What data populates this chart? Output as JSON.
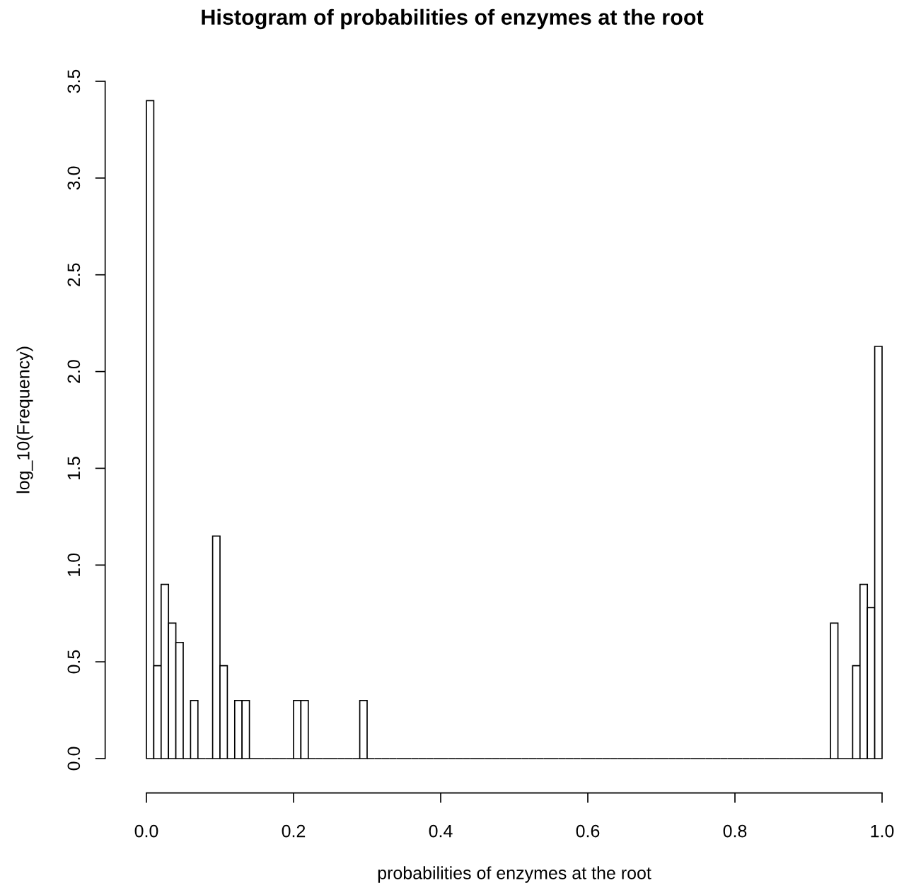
{
  "chart_data": {
    "type": "histogram",
    "title": "Histogram of probabilities of enzymes at the root",
    "xlabel": "probabilities of enzymes at the root",
    "ylabel": "log_10(Frequency)",
    "bins": [
      0,
      0.01,
      0.02,
      0.03,
      0.04,
      0.05,
      0.06,
      0.07,
      0.08,
      0.09,
      0.1,
      0.11,
      0.12,
      0.13,
      0.14,
      0.15,
      0.16,
      0.17,
      0.18,
      0.19,
      0.2,
      0.21,
      0.22,
      0.23,
      0.24,
      0.25,
      0.26,
      0.27,
      0.28,
      0.29,
      0.3,
      0.31,
      0.32,
      0.33,
      0.34,
      0.35,
      0.36,
      0.37,
      0.38,
      0.39,
      0.4,
      0.41,
      0.42,
      0.43,
      0.44,
      0.45,
      0.46,
      0.47,
      0.48,
      0.49,
      0.5,
      0.51,
      0.52,
      0.53,
      0.54,
      0.55,
      0.56,
      0.57,
      0.58,
      0.59,
      0.6,
      0.61,
      0.62,
      0.63,
      0.64,
      0.65,
      0.66,
      0.67,
      0.68,
      0.69,
      0.7,
      0.71,
      0.72,
      0.73,
      0.74,
      0.75,
      0.76,
      0.77,
      0.78,
      0.79,
      0.8,
      0.81,
      0.82,
      0.83,
      0.84,
      0.85,
      0.86,
      0.87,
      0.88,
      0.89,
      0.9,
      0.91,
      0.92,
      0.93,
      0.94,
      0.95,
      0.96,
      0.97,
      0.98,
      0.99,
      1
    ],
    "values": [
      3.4,
      0.48,
      0.9,
      0.7,
      0.6,
      0,
      0.3,
      0,
      0,
      1.15,
      0.48,
      0,
      0.3,
      0.3,
      0,
      0,
      0,
      0,
      0,
      0,
      0.3,
      0.3,
      0,
      0,
      0,
      0,
      0,
      0,
      0,
      0.3,
      0,
      0,
      0,
      0,
      0,
      0,
      0,
      0,
      0,
      0,
      0,
      0,
      0,
      0,
      0,
      0,
      0,
      0,
      0,
      0,
      0,
      0,
      0,
      0,
      0,
      0,
      0,
      0,
      0,
      0,
      0,
      0,
      0,
      0,
      0,
      0,
      0,
      0,
      0,
      0,
      0,
      0,
      0,
      0,
      0,
      0,
      0,
      0,
      0,
      0,
      0,
      0,
      0,
      0,
      0,
      0,
      0,
      0,
      0,
      0,
      0,
      0,
      0,
      0.7,
      0,
      0,
      0.48,
      0.9,
      0.78,
      2.13
    ],
    "xlim": [
      0,
      1
    ],
    "ylim": [
      0,
      3.5
    ],
    "xticks": [
      {
        "value": 0,
        "label": "0.0"
      },
      0.2,
      0.4,
      0.6,
      0.8,
      {
        "value": 1,
        "label": "1.0"
      }
    ],
    "yticks": [
      {
        "value": 0,
        "label": "0.0"
      },
      0.5,
      {
        "value": 1,
        "label": "1.0"
      },
      1.5,
      {
        "value": 2,
        "label": "2.0"
      },
      2.5,
      {
        "value": 3,
        "label": "3.0"
      },
      3.5
    ],
    "grid": false,
    "legend": false
  }
}
